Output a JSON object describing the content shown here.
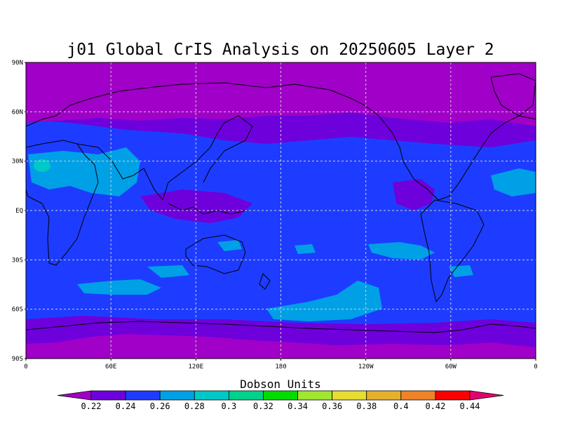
{
  "title": "j01 Global CrIS Analysis on 20250605 Layer 2",
  "lat_labels": [
    "90N",
    "60N",
    "30N",
    "EQ",
    "30S",
    "60S",
    "90S"
  ],
  "lon_labels": [
    "0",
    "60E",
    "120E",
    "180",
    "120W",
    "60W",
    "0"
  ],
  "colorbar": {
    "title": "Dobson Units",
    "levels": [
      "0.22",
      "0.24",
      "0.26",
      "0.28",
      "0.3",
      "0.32",
      "0.34",
      "0.36",
      "0.38",
      "0.4",
      "0.42",
      "0.44"
    ],
    "colors": [
      "#a000c8",
      "#6e00dc",
      "#1e3cff",
      "#00a0e6",
      "#00c8c8",
      "#00d28c",
      "#00dc00",
      "#a0e632",
      "#e6dc32",
      "#e6af2d",
      "#f08228",
      "#fa0000",
      "#e6006e"
    ]
  },
  "field": {
    "background_color": "#1e3cff",
    "polar_color": "#a000c8",
    "band_color": "#6e00dc",
    "light_color": "#00a0e6",
    "teal_color": "#00c8c8"
  }
}
